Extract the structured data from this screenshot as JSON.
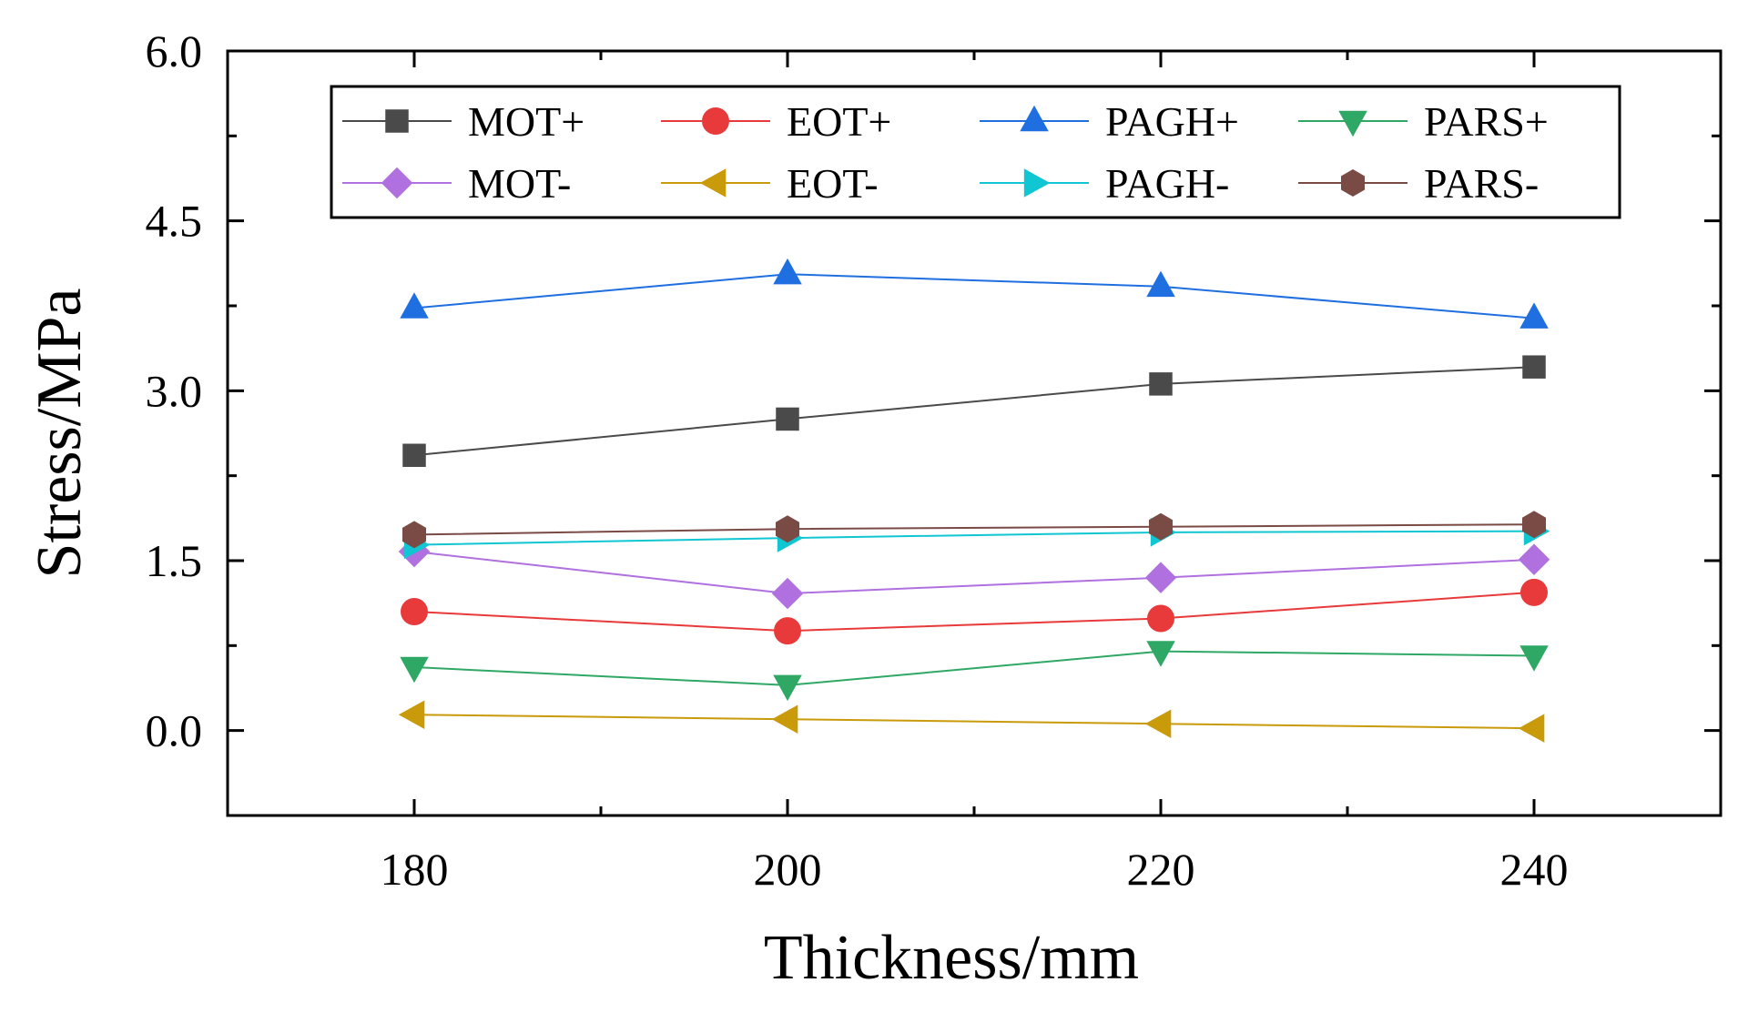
{
  "chart_data": {
    "type": "line",
    "title": "",
    "xlabel": "Thickness/mm",
    "ylabel": "Stress/MPa",
    "x": [
      180,
      200,
      220,
      240
    ],
    "xlim": [
      170,
      250
    ],
    "ylim": [
      -0.75,
      6.0
    ],
    "xticks": [
      180,
      200,
      220,
      240
    ],
    "xtick_labels": [
      "180",
      "200",
      "220",
      "240"
    ],
    "yticks": [
      0.0,
      1.5,
      3.0,
      4.5,
      6.0
    ],
    "ytick_labels": [
      "0.0",
      "1.5",
      "3.0",
      "4.5",
      "6.0"
    ],
    "grid": false,
    "legend_position": "top",
    "series": [
      {
        "name": "MOT+",
        "color": "#4a4a4a",
        "marker": "square",
        "values": [
          2.43,
          2.75,
          3.06,
          3.21
        ]
      },
      {
        "name": "EOT+",
        "color": "#e83a3a",
        "marker": "circle",
        "values": [
          1.05,
          0.88,
          0.99,
          1.22
        ]
      },
      {
        "name": "PAGH+",
        "color": "#1f6fe0",
        "marker": "triangle-up",
        "values": [
          3.73,
          4.03,
          3.92,
          3.64
        ]
      },
      {
        "name": "PARS+",
        "color": "#2fa865",
        "marker": "triangle-down",
        "values": [
          0.56,
          0.4,
          0.7,
          0.66
        ]
      },
      {
        "name": "MOT-",
        "color": "#b070e0",
        "marker": "diamond",
        "values": [
          1.58,
          1.21,
          1.35,
          1.51
        ]
      },
      {
        "name": "EOT-",
        "color": "#c99a0a",
        "marker": "triangle-left",
        "values": [
          0.14,
          0.1,
          0.06,
          0.02
        ]
      },
      {
        "name": "PAGH-",
        "color": "#10c6d2",
        "marker": "triangle-right",
        "values": [
          1.64,
          1.7,
          1.75,
          1.76
        ]
      },
      {
        "name": "PARS-",
        "color": "#7a4a45",
        "marker": "hexagon",
        "values": [
          1.73,
          1.78,
          1.8,
          1.82
        ]
      }
    ]
  }
}
